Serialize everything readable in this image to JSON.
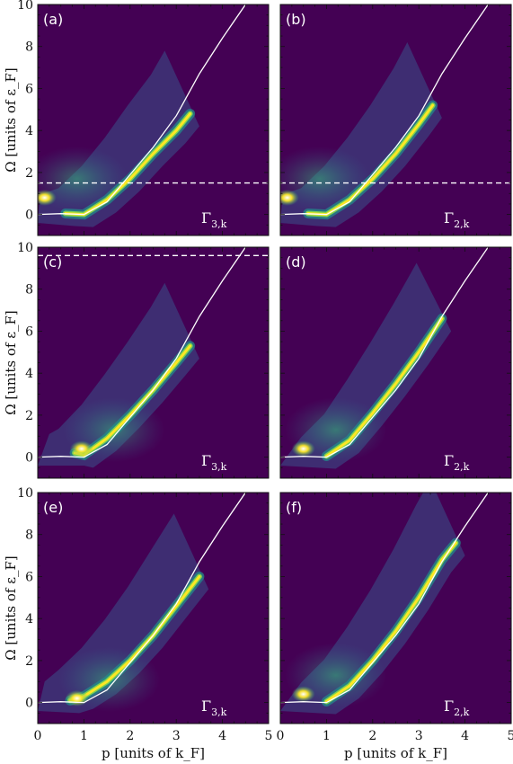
{
  "chart_data": {
    "type": "heatmap",
    "colormap": "viridis",
    "background_color": "#440154",
    "xlabel": "p [units of k_F]",
    "ylabel": "Ω [units of ε_F]",
    "xlim": [
      0,
      5
    ],
    "ylim": [
      -1,
      10
    ],
    "xticks": [
      "0",
      "1",
      "2",
      "3",
      "4",
      "5"
    ],
    "yticks": [
      "0",
      "2",
      "4",
      "6",
      "8",
      "10"
    ],
    "overlay_curve": {
      "description": "free dispersion",
      "x": [
        0.0,
        0.5,
        1.0,
        1.5,
        2.0,
        2.5,
        3.0,
        3.5,
        4.0,
        4.5
      ],
      "y": [
        0.0,
        0.04,
        0.0,
        0.6,
        1.9,
        3.2,
        4.7,
        6.7,
        8.4,
        10.0
      ]
    },
    "panels": [
      {
        "label": "(a)",
        "gamma": "Γ",
        "gamma_sub": "3,k",
        "dashed_y": 1.5,
        "ridge": {
          "x": [
            0.6,
            1.0,
            1.5,
            2.0,
            2.5,
            3.0,
            3.3
          ],
          "y": [
            0.05,
            0.0,
            0.7,
            1.7,
            2.9,
            4.0,
            4.8
          ]
        },
        "hotspot": {
          "x": 0.15,
          "y": 0.8
        }
      },
      {
        "label": "(b)",
        "gamma": "Γ",
        "gamma_sub": "2,k",
        "dashed_y": 1.5,
        "ridge": {
          "x": [
            0.6,
            1.0,
            1.5,
            2.0,
            2.5,
            3.0,
            3.3
          ],
          "y": [
            0.05,
            0.0,
            0.7,
            1.7,
            2.9,
            4.3,
            5.2
          ]
        },
        "hotspot": {
          "x": 0.15,
          "y": 0.8
        }
      },
      {
        "label": "(c)",
        "gamma": "Γ",
        "gamma_sub": "3,k",
        "dashed_y": 9.6,
        "ridge": {
          "x": [
            0.8,
            1.0,
            1.5,
            2.0,
            2.5,
            3.0,
            3.3
          ],
          "y": [
            0.2,
            0.1,
            0.9,
            2.0,
            3.2,
            4.5,
            5.3
          ]
        },
        "hotspot": {
          "x": 0.95,
          "y": 0.4
        }
      },
      {
        "label": "(d)",
        "gamma": "Γ",
        "gamma_sub": "2,k",
        "dashed_y": null,
        "ridge": {
          "x": [
            1.0,
            1.5,
            2.0,
            2.5,
            3.0,
            3.5
          ],
          "y": [
            0.05,
            0.8,
            2.1,
            3.5,
            5.0,
            6.6
          ]
        },
        "hotspot": {
          "x": 0.5,
          "y": 0.4
        }
      },
      {
        "label": "(e)",
        "gamma": "Γ",
        "gamma_sub": "3,k",
        "dashed_y": null,
        "ridge": {
          "x": [
            0.7,
            1.0,
            1.5,
            2.0,
            2.5,
            3.0,
            3.5
          ],
          "y": [
            0.1,
            0.3,
            1.0,
            2.0,
            3.2,
            4.6,
            6.0
          ]
        },
        "hotspot": {
          "x": 0.85,
          "y": 0.2
        }
      },
      {
        "label": "(f)",
        "gamma": "Γ",
        "gamma_sub": "2,k",
        "dashed_y": null,
        "ridge": {
          "x": [
            1.0,
            1.5,
            2.0,
            2.5,
            3.0,
            3.5,
            3.8
          ],
          "y": [
            0.05,
            0.8,
            2.0,
            3.4,
            5.0,
            6.8,
            7.6
          ]
        },
        "hotspot": {
          "x": 0.5,
          "y": 0.4
        }
      }
    ]
  }
}
